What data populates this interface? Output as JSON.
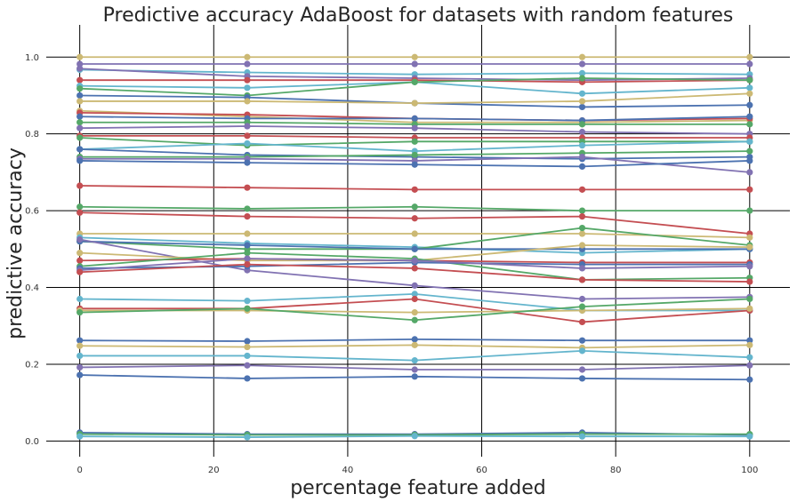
{
  "chart_data": {
    "type": "line",
    "title": "Predictive accuracy AdaBoost for datasets with random features",
    "xlabel": "percentage feature added",
    "ylabel": "predictive accuracy",
    "x": [
      0,
      25,
      50,
      75,
      100
    ],
    "xlim": [
      -5,
      106
    ],
    "ylim": [
      -0.05,
      1.07
    ],
    "xticks": [
      0,
      20,
      40,
      60,
      80,
      100
    ],
    "xtick_labels": [
      "0",
      "20",
      "40",
      "60",
      "80",
      "100"
    ],
    "yticks": [
      0.0,
      0.2,
      0.4,
      0.6,
      0.8,
      1.0
    ],
    "ytick_labels": [
      "0.0",
      "0.2",
      "0.4",
      "0.6",
      "0.8",
      "1.0"
    ],
    "grid": true,
    "legend": "none",
    "palette": [
      "#4C72B0",
      "#55A868",
      "#C44E52",
      "#8172B2",
      "#CCB974",
      "#64B5CD"
    ],
    "series": [
      {
        "color": "#CCB974",
        "values": [
          1.0,
          1.0,
          1.0,
          1.0,
          1.0
        ]
      },
      {
        "color": "#8172B2",
        "values": [
          0.982,
          0.982,
          0.982,
          0.982,
          0.982
        ]
      },
      {
        "color": "#64B5CD",
        "values": [
          0.967,
          0.96,
          0.955,
          0.958,
          0.955
        ]
      },
      {
        "color": "#8172B2",
        "values": [
          0.97,
          0.95,
          0.945,
          0.94,
          0.945
        ]
      },
      {
        "color": "#C44E52",
        "values": [
          0.94,
          0.94,
          0.94,
          0.935,
          0.94
        ]
      },
      {
        "color": "#64B5CD",
        "values": [
          0.925,
          0.92,
          0.935,
          0.905,
          0.92
        ]
      },
      {
        "color": "#55A868",
        "values": [
          0.918,
          0.9,
          0.935,
          0.945,
          0.94
        ]
      },
      {
        "color": "#4C72B0",
        "values": [
          0.9,
          0.895,
          0.88,
          0.87,
          0.875
        ]
      },
      {
        "color": "#CCB974",
        "values": [
          0.885,
          0.885,
          0.88,
          0.885,
          0.905
        ]
      },
      {
        "color": "#CCB974",
        "values": [
          0.86,
          0.845,
          0.83,
          0.83,
          0.835
        ]
      },
      {
        "color": "#C44E52",
        "values": [
          0.855,
          0.85,
          0.84,
          0.835,
          0.84
        ]
      },
      {
        "color": "#4C72B0",
        "values": [
          0.845,
          0.84,
          0.84,
          0.835,
          0.845
        ]
      },
      {
        "color": "#55A868",
        "values": [
          0.83,
          0.83,
          0.825,
          0.825,
          0.825
        ]
      },
      {
        "color": "#8172B2",
        "values": [
          0.815,
          0.82,
          0.815,
          0.805,
          0.8
        ]
      },
      {
        "color": "#C44E52",
        "values": [
          0.795,
          0.795,
          0.79,
          0.79,
          0.79
        ]
      },
      {
        "color": "#55A868",
        "values": [
          0.79,
          0.77,
          0.78,
          0.78,
          0.78
        ]
      },
      {
        "color": "#64B5CD",
        "values": [
          0.76,
          0.775,
          0.755,
          0.77,
          0.78
        ]
      },
      {
        "color": "#4C72B0",
        "values": [
          0.76,
          0.745,
          0.74,
          0.735,
          0.74
        ]
      },
      {
        "color": "#55A868",
        "values": [
          0.74,
          0.74,
          0.745,
          0.75,
          0.755
        ]
      },
      {
        "color": "#8172B2",
        "values": [
          0.735,
          0.735,
          0.73,
          0.74,
          0.7
        ]
      },
      {
        "color": "#4C72B0",
        "values": [
          0.73,
          0.725,
          0.72,
          0.715,
          0.73
        ]
      },
      {
        "color": "#C44E52",
        "values": [
          0.665,
          0.66,
          0.655,
          0.655,
          0.655
        ]
      },
      {
        "color": "#55A868",
        "values": [
          0.61,
          0.605,
          0.61,
          0.6,
          0.6
        ]
      },
      {
        "color": "#C44E52",
        "values": [
          0.595,
          0.585,
          0.58,
          0.585,
          0.54
        ]
      },
      {
        "color": "#CCB974",
        "values": [
          0.54,
          0.54,
          0.54,
          0.54,
          0.53
        ]
      },
      {
        "color": "#64B5CD",
        "values": [
          0.53,
          0.515,
          0.505,
          0.49,
          0.5
        ]
      },
      {
        "color": "#55A868",
        "values": [
          0.52,
          0.5,
          0.5,
          0.555,
          0.51
        ]
      },
      {
        "color": "#4C72B0",
        "values": [
          0.52,
          0.51,
          0.5,
          0.5,
          0.5
        ]
      },
      {
        "color": "#8172B2",
        "values": [
          0.525,
          0.445,
          0.405,
          0.37,
          0.375
        ]
      },
      {
        "color": "#CCB974",
        "values": [
          0.49,
          0.47,
          0.47,
          0.51,
          0.505
        ]
      },
      {
        "color": "#C44E52",
        "values": [
          0.47,
          0.475,
          0.47,
          0.465,
          0.465
        ]
      },
      {
        "color": "#55A868",
        "values": [
          0.455,
          0.49,
          0.475,
          0.42,
          0.425
        ]
      },
      {
        "color": "#4C72B0",
        "values": [
          0.45,
          0.455,
          0.465,
          0.46,
          0.46
        ]
      },
      {
        "color": "#8172B2",
        "values": [
          0.445,
          0.475,
          0.47,
          0.45,
          0.455
        ]
      },
      {
        "color": "#C44E52",
        "values": [
          0.44,
          0.46,
          0.45,
          0.42,
          0.415
        ]
      },
      {
        "color": "#64B5CD",
        "values": [
          0.37,
          0.365,
          0.383,
          0.34,
          0.34
        ]
      },
      {
        "color": "#C44E52",
        "values": [
          0.345,
          0.345,
          0.37,
          0.31,
          0.34
        ]
      },
      {
        "color": "#CCB974",
        "values": [
          0.34,
          0.34,
          0.335,
          0.34,
          0.345
        ]
      },
      {
        "color": "#55A868",
        "values": [
          0.335,
          0.345,
          0.315,
          0.35,
          0.37
        ]
      },
      {
        "color": "#4C72B0",
        "values": [
          0.262,
          0.26,
          0.265,
          0.262,
          0.262
        ]
      },
      {
        "color": "#CCB974",
        "values": [
          0.248,
          0.245,
          0.25,
          0.243,
          0.25
        ]
      },
      {
        "color": "#64B5CD",
        "values": [
          0.222,
          0.222,
          0.21,
          0.235,
          0.218
        ]
      },
      {
        "color": "#8172B2",
        "values": [
          0.192,
          0.197,
          0.186,
          0.186,
          0.197
        ]
      },
      {
        "color": "#4C72B0",
        "values": [
          0.172,
          0.163,
          0.168,
          0.163,
          0.16
        ]
      },
      {
        "color": "#4C72B0",
        "values": [
          0.022,
          0.018,
          0.018,
          0.022,
          0.016
        ]
      },
      {
        "color": "#55A868",
        "values": [
          0.018,
          0.016,
          0.016,
          0.018,
          0.018
        ]
      },
      {
        "color": "#64B5CD",
        "values": [
          0.012,
          0.01,
          0.013,
          0.012,
          0.012
        ]
      }
    ]
  }
}
